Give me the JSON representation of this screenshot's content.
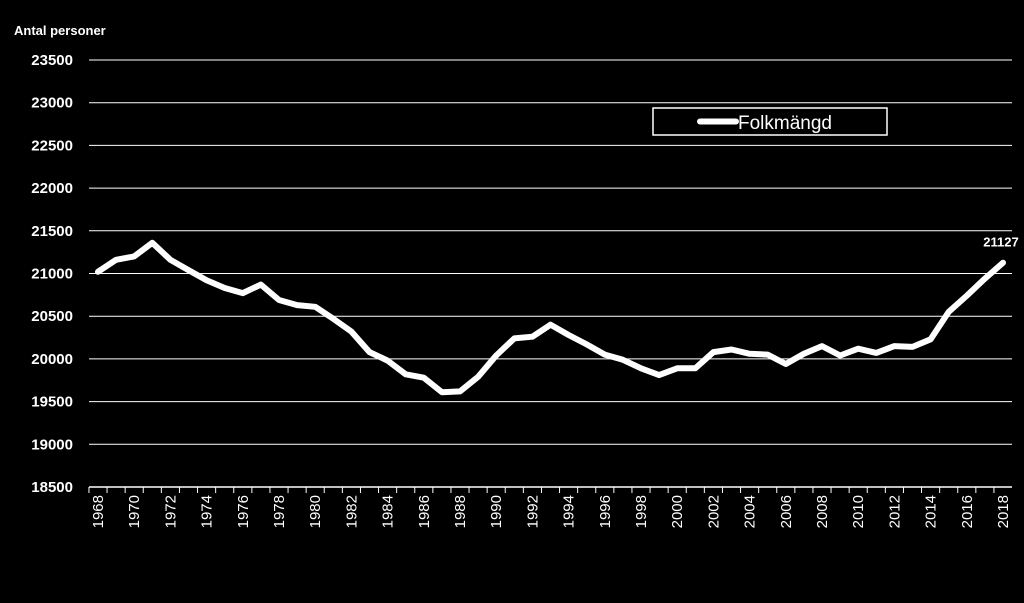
{
  "chart_data": {
    "type": "line",
    "ylabel": "Antal personer",
    "ylim": [
      18500,
      23500
    ],
    "ystep": 500,
    "grid": true,
    "legend_position": "top-right",
    "series": [
      {
        "name": "Folkmängd",
        "color": "#ffffff",
        "x": [
          1968,
          1969,
          1970,
          1971,
          1972,
          1973,
          1974,
          1975,
          1976,
          1977,
          1978,
          1979,
          1980,
          1981,
          1982,
          1983,
          1984,
          1985,
          1986,
          1987,
          1988,
          1989,
          1990,
          1991,
          1992,
          1993,
          1994,
          1995,
          1996,
          1997,
          1998,
          1999,
          2000,
          2001,
          2002,
          2003,
          2004,
          2005,
          2006,
          2007,
          2008,
          2009,
          2010,
          2011,
          2012,
          2013,
          2014,
          2015,
          2016,
          2017,
          2018
        ],
        "values": [
          21020,
          21160,
          21200,
          21360,
          21160,
          21040,
          20920,
          20830,
          20770,
          20870,
          20690,
          20630,
          20610,
          20470,
          20320,
          20080,
          19980,
          19820,
          19780,
          19610,
          19620,
          19790,
          20040,
          20240,
          20260,
          20400,
          20280,
          20170,
          20050,
          19990,
          19890,
          19810,
          19890,
          19890,
          20080,
          20110,
          20060,
          20050,
          19940,
          20060,
          20150,
          20040,
          20120,
          20070,
          20150,
          20140,
          20230,
          20550,
          20740,
          20940,
          21127
        ]
      }
    ],
    "x_tick_labels": [
      "1968",
      "1970",
      "1972",
      "1974",
      "1976",
      "1978",
      "1980",
      "1982",
      "1984",
      "1986",
      "1988",
      "1990",
      "1992",
      "1994",
      "1996",
      "1998",
      "2000",
      "2002",
      "2004",
      "2006",
      "2008",
      "2010",
      "2012",
      "2014",
      "2016",
      "2018"
    ],
    "data_labels": [
      {
        "x": 2018,
        "text": "21127"
      }
    ]
  }
}
